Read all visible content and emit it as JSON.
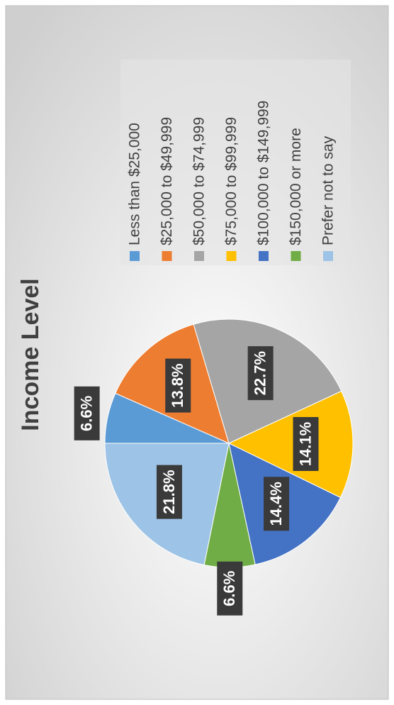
{
  "chart_data": {
    "type": "pie",
    "title": "Income Level",
    "categories": [
      "Less than $25,000",
      "$25,000 to $49,999",
      "$50,000 to $74,999",
      "$75,000 to $99,999",
      "$100,000 to $149,999",
      "$150,000 or more",
      "Prefer not to say"
    ],
    "values": [
      6.6,
      13.8,
      22.7,
      14.1,
      14.4,
      6.6,
      21.8
    ],
    "value_labels": [
      "6.6%",
      "13.8%",
      "22.7%",
      "14.1%",
      "14.4%",
      "6.6%",
      "21.8%"
    ],
    "colors": [
      "#5b9bd5",
      "#ed7d31",
      "#a5a5a5",
      "#ffc000",
      "#4472c4",
      "#70ad47",
      "#9dc3e6"
    ]
  }
}
